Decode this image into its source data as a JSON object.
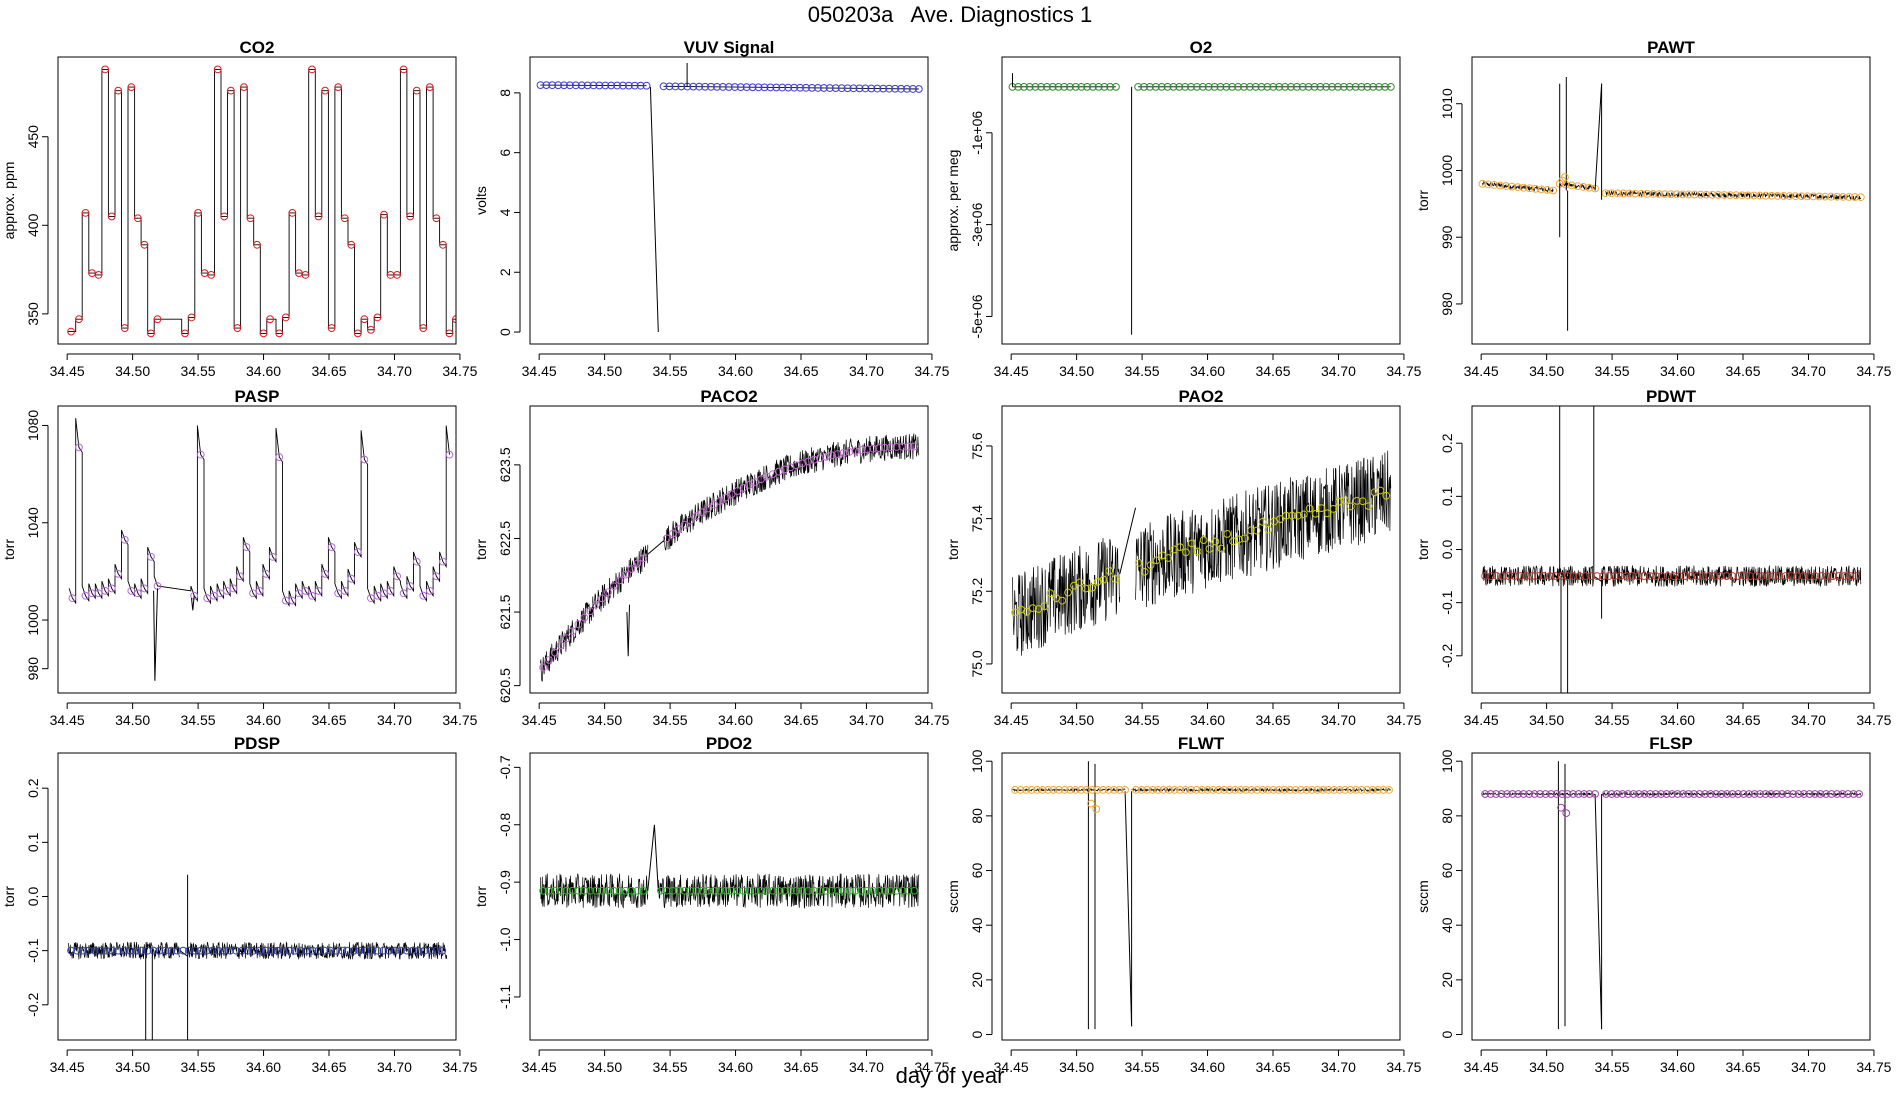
{
  "title": "050203a   Ave. Diagnostics 1",
  "xlabel": "day of year",
  "x_ticks": [
    "34.45",
    "34.50",
    "34.55",
    "34.60",
    "34.65",
    "34.70",
    "34.75"
  ],
  "chart_data": [
    {
      "type": "line",
      "title": "CO2",
      "ylabel": "approx. ppm",
      "xlim": [
        34.443,
        34.747
      ],
      "ylim": [
        333,
        495
      ],
      "y_ticks": [
        {
          "v": 350,
          "label": "350"
        },
        {
          "v": 400,
          "label": "400"
        },
        {
          "v": 450,
          "label": "450"
        }
      ],
      "marker_color": "#e41a1c",
      "points": [
        [
          34.453,
          340
        ],
        [
          34.459,
          347
        ],
        [
          34.464,
          407
        ],
        [
          34.469,
          373
        ],
        [
          34.474,
          372
        ],
        [
          34.479,
          488
        ],
        [
          34.484,
          405
        ],
        [
          34.489,
          476
        ],
        [
          34.494,
          342
        ],
        [
          34.499,
          478
        ],
        [
          34.504,
          404
        ],
        [
          34.509,
          389
        ],
        [
          34.514,
          339
        ],
        [
          34.519,
          347
        ],
        [
          34.54,
          339
        ],
        [
          34.545,
          348
        ],
        [
          34.55,
          407
        ],
        [
          34.555,
          373
        ],
        [
          34.56,
          372
        ],
        [
          34.565,
          488
        ],
        [
          34.57,
          405
        ],
        [
          34.575,
          476
        ],
        [
          34.58,
          342
        ],
        [
          34.585,
          478
        ],
        [
          34.59,
          404
        ],
        [
          34.595,
          389
        ],
        [
          34.6,
          339
        ],
        [
          34.605,
          347
        ],
        [
          34.612,
          339
        ],
        [
          34.617,
          348
        ],
        [
          34.622,
          407
        ],
        [
          34.627,
          373
        ],
        [
          34.632,
          372
        ],
        [
          34.637,
          488
        ],
        [
          34.642,
          405
        ],
        [
          34.647,
          476
        ],
        [
          34.652,
          342
        ],
        [
          34.657,
          478
        ],
        [
          34.662,
          404
        ],
        [
          34.667,
          389
        ],
        [
          34.672,
          339
        ],
        [
          34.677,
          347
        ],
        [
          34.682,
          341
        ],
        [
          34.687,
          348
        ],
        [
          34.692,
          406
        ],
        [
          34.697,
          372
        ],
        [
          34.702,
          372
        ],
        [
          34.707,
          488
        ],
        [
          34.712,
          405
        ],
        [
          34.717,
          476
        ],
        [
          34.722,
          342
        ],
        [
          34.727,
          478
        ],
        [
          34.732,
          404
        ],
        [
          34.737,
          389
        ],
        [
          34.742,
          339
        ],
        [
          34.747,
          347
        ]
      ]
    },
    {
      "type": "line",
      "title": "VUV Signal",
      "ylabel": "volts",
      "xlim": [
        34.443,
        34.747
      ],
      "ylim": [
        -0.4,
        9.2
      ],
      "y_ticks": [
        {
          "v": 0,
          "label": "0"
        },
        {
          "v": 2,
          "label": "2"
        },
        {
          "v": 4,
          "label": "4"
        },
        {
          "v": 6,
          "label": "6"
        },
        {
          "v": 8,
          "label": "8"
        }
      ],
      "marker_color": "#3b3bdb",
      "seg_a": {
        "x0": 34.451,
        "x1": 34.532,
        "y0": 8.26,
        "y1": 8.24
      },
      "seg_b": {
        "x0": 34.545,
        "x1": 34.74,
        "y0": 8.22,
        "y1": 8.13
      },
      "spikes": [
        {
          "x0": 34.535,
          "y0": 8.2,
          "x1": 34.541,
          "y1": 0
        },
        {
          "x1": 34.543,
          "y1": 8.2
        },
        {
          "x0": 34.563,
          "y0": 8.2,
          "x1": 34.563,
          "y1": 9.0
        }
      ]
    },
    {
      "type": "line",
      "title": "O2",
      "ylabel": "approx. per meg",
      "xlim": [
        34.443,
        34.747
      ],
      "ylim": [
        -5600000,
        650000
      ],
      "y_ticks": [
        {
          "v": -5000000,
          "label": "-5e+06"
        },
        {
          "v": -3000000,
          "label": "-3e+06"
        },
        {
          "v": -1000000,
          "label": "-1e+06"
        }
      ],
      "marker_color": "#2e8b2e",
      "seg_a": {
        "x0": 34.451,
        "x1": 34.53,
        "y0": 0,
        "y1": 0
      },
      "seg_b": {
        "x0": 34.547,
        "x1": 34.74,
        "y0": 0,
        "y1": 0
      },
      "spikes": [
        {
          "x0": 34.542,
          "y0": 0,
          "x1": 34.542,
          "y1": -5400000
        },
        {
          "x0": 34.451,
          "y0": 0,
          "x1": 34.451,
          "y1": 300000
        }
      ]
    },
    {
      "type": "line",
      "title": "PAWT",
      "ylabel": "torr",
      "xlim": [
        34.443,
        34.747
      ],
      "ylim": [
        974,
        1017
      ],
      "y_ticks": [
        {
          "v": 980,
          "label": "980"
        },
        {
          "v": 990,
          "label": "990"
        },
        {
          "v": 1000,
          "label": "1000"
        },
        {
          "v": 1010,
          "label": "1010"
        }
      ],
      "marker_color": "#f4a736",
      "seg_a": {
        "x0": 34.451,
        "x1": 34.505,
        "y0": 998,
        "y1": 997
      },
      "seg_b": {
        "x0": 34.51,
        "x1": 34.537,
        "y0": 998,
        "y1": 997.3
      },
      "seg_c": {
        "x0": 34.545,
        "x1": 34.74,
        "y0": 996.6,
        "y1": 996
      },
      "spikes": [
        {
          "x0": 34.51,
          "y0": 997,
          "x1": 34.51,
          "y1": 1013
        },
        {
          "x0": 34.51,
          "y0": 997,
          "x1": 34.51,
          "y1": 990
        },
        {
          "x0": 34.515,
          "y0": 997,
          "x1": 34.515,
          "y1": 1014
        },
        {
          "x0": 34.516,
          "y0": 997,
          "x1": 34.516,
          "y1": 976
        },
        {
          "x0": 34.537,
          "y0": 997,
          "x1": 34.542,
          "y1": 1013
        },
        {
          "x0": 34.542,
          "y0": 1013,
          "x1": 34.542,
          "y1": 995.6
        }
      ]
    },
    {
      "type": "line",
      "title": "PASP",
      "ylabel": "torr",
      "xlim": [
        34.443,
        34.747
      ],
      "ylim": [
        970,
        1088
      ],
      "y_ticks": [
        {
          "v": 980,
          "label": "980"
        },
        {
          "v": 1000,
          "label": "1000"
        },
        {
          "v": 1040,
          "label": "1040"
        },
        {
          "v": 1080,
          "label": "1080"
        }
      ],
      "marker_color": "#b36ad9",
      "points": [
        [
          34.454,
          1009
        ],
        [
          34.459,
          1071
        ],
        [
          34.464,
          1010
        ],
        [
          34.469,
          1011
        ],
        [
          34.474,
          1011
        ],
        [
          34.479,
          1012
        ],
        [
          34.484,
          1013
        ],
        [
          34.489,
          1019
        ],
        [
          34.494,
          1033
        ],
        [
          34.499,
          1012
        ],
        [
          34.504,
          1011
        ],
        [
          34.509,
          1013
        ],
        [
          34.514,
          1026
        ],
        [
          34.519,
          1014
        ],
        [
          34.547,
          1010
        ],
        [
          34.552,
          1068
        ],
        [
          34.557,
          1009
        ],
        [
          34.562,
          1010
        ],
        [
          34.567,
          1011
        ],
        [
          34.572,
          1012
        ],
        [
          34.577,
          1013
        ],
        [
          34.582,
          1018
        ],
        [
          34.587,
          1030
        ],
        [
          34.592,
          1011
        ],
        [
          34.597,
          1012
        ],
        [
          34.602,
          1019
        ],
        [
          34.607,
          1026
        ],
        [
          34.612,
          1067
        ],
        [
          34.617,
          1008
        ],
        [
          34.622,
          1008
        ],
        [
          34.627,
          1011
        ],
        [
          34.632,
          1012
        ],
        [
          34.637,
          1010
        ],
        [
          34.642,
          1012
        ],
        [
          34.647,
          1019
        ],
        [
          34.652,
          1030
        ],
        [
          34.657,
          1011
        ],
        [
          34.662,
          1012
        ],
        [
          34.667,
          1017
        ],
        [
          34.672,
          1028
        ],
        [
          34.677,
          1066
        ],
        [
          34.682,
          1009
        ],
        [
          34.687,
          1010
        ],
        [
          34.692,
          1011
        ],
        [
          34.697,
          1012
        ],
        [
          34.702,
          1018
        ],
        [
          34.707,
          1011
        ],
        [
          34.712,
          1014
        ],
        [
          34.717,
          1024
        ],
        [
          34.722,
          1010
        ],
        [
          34.727,
          1012
        ],
        [
          34.732,
          1018
        ],
        [
          34.737,
          1024
        ],
        [
          34.742,
          1068
        ]
      ]
    },
    {
      "type": "line",
      "title": "PACO2",
      "ylabel": "torr",
      "xlim": [
        34.443,
        34.747
      ],
      "ylim": [
        620.4,
        624.3
      ],
      "y_ticks": [
        {
          "v": 620.5,
          "label": "620.5"
        },
        {
          "v": 621.5,
          "label": "621.5"
        },
        {
          "v": 622.5,
          "label": "622.5"
        },
        {
          "v": 623.5,
          "label": "623.5"
        }
      ],
      "marker_color": "#c969d6",
      "curve": {
        "x0": 34.451,
        "x1": 34.74,
        "y0": 620.7,
        "ymax": 623.75
      },
      "gap": [
        34.533,
        34.545
      ]
    },
    {
      "type": "line",
      "title": "PAO2",
      "ylabel": "torr",
      "xlim": [
        34.443,
        34.747
      ],
      "ylim": [
        74.92,
        75.71
      ],
      "y_ticks": [
        {
          "v": 75.0,
          "label": "75.0"
        },
        {
          "v": 75.2,
          "label": "75.2"
        },
        {
          "v": 75.4,
          "label": "75.4"
        },
        {
          "v": 75.6,
          "label": "75.6"
        }
      ],
      "marker_color": "#cccc00",
      "trend": {
        "x0": 34.451,
        "x1": 34.74,
        "y0": 75.12,
        "y1": 75.47
      },
      "gap": [
        34.533,
        34.545
      ]
    },
    {
      "type": "line",
      "title": "PDWT",
      "ylabel": "torr",
      "xlim": [
        34.443,
        34.747
      ],
      "ylim": [
        -0.27,
        0.27
      ],
      "y_ticks": [
        {
          "v": -0.2,
          "label": "-0.2"
        },
        {
          "v": -0.1,
          "label": "-0.1"
        },
        {
          "v": 0.0,
          "label": "0.0"
        },
        {
          "v": 0.1,
          "label": "0.1"
        },
        {
          "v": 0.2,
          "label": "0.2"
        }
      ],
      "marker_color": "#c0392b",
      "level": -0.05,
      "noise": 0.02,
      "spikes": [
        {
          "x0": 34.51,
          "y0": -0.05,
          "x1": 34.51,
          "y1": 0.27
        },
        {
          "x0": 34.511,
          "y0": -0.05,
          "x1": 34.511,
          "y1": -0.27
        },
        {
          "x0": 34.516,
          "y0": -0.05,
          "x1": 34.516,
          "y1": -0.27
        },
        {
          "x0": 34.536,
          "y0": -0.05,
          "x1": 34.536,
          "y1": 0.27
        },
        {
          "x0": 34.542,
          "y0": -0.05,
          "x1": 34.542,
          "y1": -0.13
        }
      ]
    },
    {
      "type": "line",
      "title": "PDSP",
      "ylabel": "torr",
      "xlim": [
        34.443,
        34.747
      ],
      "ylim": [
        -0.265,
        0.265
      ],
      "y_ticks": [
        {
          "v": -0.2,
          "label": "-0.2"
        },
        {
          "v": -0.1,
          "label": "-0.1"
        },
        {
          "v": 0.0,
          "label": "0.0"
        },
        {
          "v": 0.1,
          "label": "0.1"
        },
        {
          "v": 0.2,
          "label": "0.2"
        }
      ],
      "marker_color": "#2e3bbd",
      "level": -0.1,
      "noise": 0.016,
      "spikes": [
        {
          "x0": 34.51,
          "y0": -0.1,
          "x1": 34.51,
          "y1": -0.265
        },
        {
          "x0": 34.515,
          "y0": -0.1,
          "x1": 34.515,
          "y1": -0.265
        },
        {
          "x0": 34.542,
          "y0": -0.1,
          "x1": 34.542,
          "y1": 0.04
        },
        {
          "x0": 34.542,
          "y0": -0.1,
          "x1": 34.542,
          "y1": -0.265
        }
      ]
    },
    {
      "type": "line",
      "title": "PDO2",
      "ylabel": "torr",
      "xlim": [
        34.443,
        34.747
      ],
      "ylim": [
        -1.175,
        -0.675
      ],
      "y_ticks": [
        {
          "v": -1.1,
          "label": "-1.1"
        },
        {
          "v": -1.0,
          "label": "-1.0"
        },
        {
          "v": -0.9,
          "label": "-0.9"
        },
        {
          "v": -0.8,
          "label": "-0.8"
        },
        {
          "v": -0.7,
          "label": "-0.7"
        }
      ],
      "marker_color": "#1fbf1f",
      "level": -0.915,
      "noise": 0.03,
      "gap": [
        34.533,
        34.541
      ]
    },
    {
      "type": "line",
      "title": "FLWT",
      "ylabel": "sccm",
      "xlim": [
        34.443,
        34.747
      ],
      "ylim": [
        -2,
        103
      ],
      "y_ticks": [
        {
          "v": 0,
          "label": "0"
        },
        {
          "v": 20,
          "label": "20"
        },
        {
          "v": 40,
          "label": "40"
        },
        {
          "v": 60,
          "label": "60"
        },
        {
          "v": 80,
          "label": "80"
        },
        {
          "v": 100,
          "label": "100"
        }
      ],
      "marker_color": "#f4a736",
      "level": 89.5,
      "spikes": [
        {
          "x0": 34.509,
          "y0": 89,
          "x1": 34.509,
          "y1": 2
        },
        {
          "x0": 34.509,
          "y0": 89,
          "x1": 34.509,
          "y1": 100
        },
        {
          "x0": 34.514,
          "y0": 89,
          "x1": 34.514,
          "y1": 2
        },
        {
          "x0": 34.514,
          "y0": 89,
          "x1": 34.514,
          "y1": 99
        },
        {
          "x0": 34.537,
          "y0": 89,
          "x1": 34.542,
          "y1": 3
        },
        {
          "x0": 34.542,
          "y0": 3,
          "x1": 34.542,
          "y1": 89
        }
      ]
    },
    {
      "type": "line",
      "title": "FLSP",
      "ylabel": "sccm",
      "xlim": [
        34.443,
        34.747
      ],
      "ylim": [
        -2,
        103
      ],
      "y_ticks": [
        {
          "v": 0,
          "label": "0"
        },
        {
          "v": 20,
          "label": "20"
        },
        {
          "v": 40,
          "label": "40"
        },
        {
          "v": 60,
          "label": "60"
        },
        {
          "v": 80,
          "label": "80"
        },
        {
          "v": 100,
          "label": "100"
        }
      ],
      "marker_color": "#a43fb0",
      "level": 88,
      "spikes": [
        {
          "x0": 34.509,
          "y0": 88,
          "x1": 34.509,
          "y1": 2
        },
        {
          "x0": 34.509,
          "y0": 88,
          "x1": 34.509,
          "y1": 100
        },
        {
          "x0": 34.514,
          "y0": 88,
          "x1": 34.514,
          "y1": 3
        },
        {
          "x0": 34.514,
          "y0": 88,
          "x1": 34.514,
          "y1": 99
        },
        {
          "x0": 34.537,
          "y0": 88,
          "x1": 34.542,
          "y1": 2
        },
        {
          "x0": 34.542,
          "y0": 2,
          "x1": 34.542,
          "y1": 88
        }
      ]
    }
  ]
}
